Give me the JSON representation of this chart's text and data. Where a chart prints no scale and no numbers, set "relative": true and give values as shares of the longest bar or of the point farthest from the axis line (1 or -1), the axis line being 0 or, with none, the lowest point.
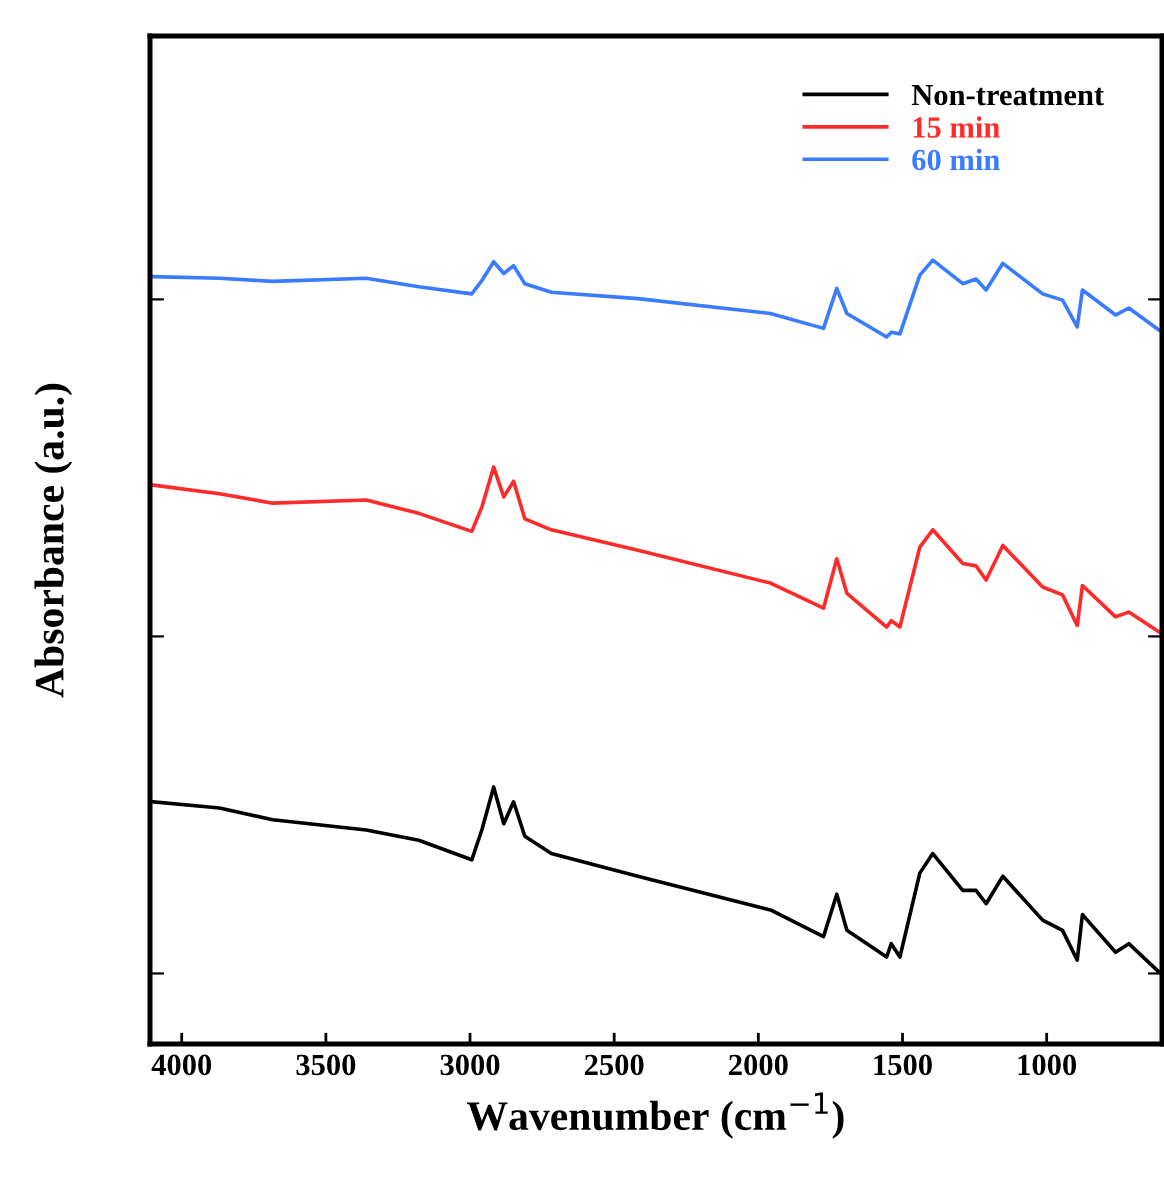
{
  "chart_data": {
    "type": "line",
    "xlabel": "Wavenumber (cm$^{−1}$)",
    "ylabel": "Absorbance (a.u.)",
    "relative": true,
    "xlim": [
      4110,
      600
    ],
    "xticks": [
      4000,
      3500,
      3000,
      2500,
      2000,
      1500,
      1000
    ],
    "legend": "top right",
    "grid": false,
    "tick_labels": "x",
    "x": [
      4099,
      3869,
      3684,
      3360,
      3178,
      2994,
      2959,
      2918,
      2883,
      2849,
      2810,
      2718,
      2418,
      1958,
      1774,
      1728,
      1693,
      1555,
      1539,
      1509,
      1440,
      1395,
      1291,
      1245,
      1210,
      1152,
      1014,
      945,
      894,
      876,
      761,
      715,
      611
    ],
    "series": [
      {
        "name": "Non-treatment",
        "color": "#000000",
        "values": [
          0.309,
          0.301,
          0.286,
          0.273,
          0.26,
          0.235,
          0.273,
          0.328,
          0.281,
          0.309,
          0.265,
          0.243,
          0.214,
          0.171,
          0.137,
          0.191,
          0.145,
          0.111,
          0.128,
          0.111,
          0.218,
          0.243,
          0.196,
          0.196,
          0.179,
          0.214,
          0.158,
          0.145,
          0.107,
          0.165,
          0.117,
          0.128,
          0.092
        ]
      },
      {
        "name": "15 min",
        "color": "#ff2a2a",
        "values": [
          0.713,
          0.702,
          0.69,
          0.694,
          0.677,
          0.654,
          0.685,
          0.736,
          0.698,
          0.718,
          0.67,
          0.656,
          0.63,
          0.588,
          0.556,
          0.619,
          0.575,
          0.532,
          0.54,
          0.532,
          0.634,
          0.656,
          0.613,
          0.61,
          0.592,
          0.636,
          0.583,
          0.573,
          0.534,
          0.585,
          0.545,
          0.551,
          0.526
        ]
      },
      {
        "name": "60 min",
        "color": "#3a7cff",
        "values": [
          0.979,
          0.977,
          0.973,
          0.977,
          0.966,
          0.957,
          0.974,
          0.998,
          0.983,
          0.993,
          0.97,
          0.959,
          0.951,
          0.932,
          0.913,
          0.964,
          0.932,
          0.902,
          0.908,
          0.906,
          0.981,
          1.0,
          0.97,
          0.976,
          0.962,
          0.996,
          0.957,
          0.949,
          0.915,
          0.962,
          0.93,
          0.939,
          0.911
        ]
      }
    ]
  }
}
